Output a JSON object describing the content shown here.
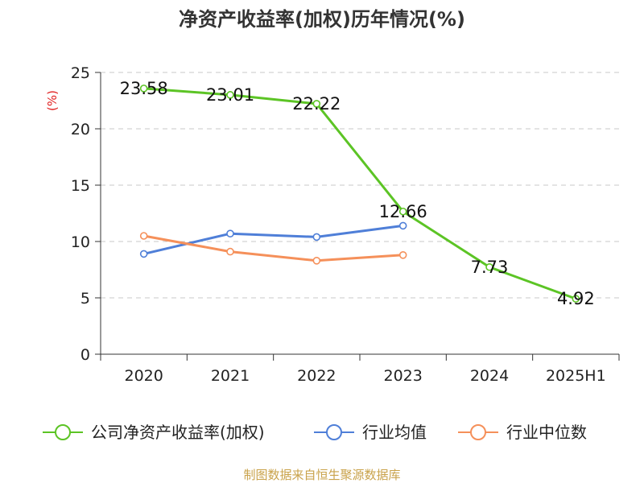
{
  "chart_data": {
    "type": "line",
    "title": "净资产收益率(加权)历年情况(%)",
    "ylabel": "(%)",
    "xlabel": "",
    "categories": [
      "2020",
      "2021",
      "2022",
      "2023",
      "2024",
      "2025H1"
    ],
    "ylim": [
      0,
      25
    ],
    "yticks": [
      0,
      5,
      10,
      15,
      20,
      25
    ],
    "grid": "horizontal-dashed",
    "legend_position": "bottom",
    "series": [
      {
        "name": "公司净资产收益率(加权)",
        "color": "#5cc425",
        "values": [
          23.58,
          23.01,
          22.22,
          12.66,
          7.73,
          4.92
        ],
        "data_labels": [
          "23.58",
          "23.01",
          "22.22",
          "12.66",
          "7.73",
          "4.92"
        ]
      },
      {
        "name": "行业均值",
        "color": "#4f7fd8",
        "values": [
          8.9,
          10.7,
          10.4,
          11.4,
          null,
          null
        ]
      },
      {
        "name": "行业中位数",
        "color": "#f5905a",
        "values": [
          10.5,
          9.1,
          8.3,
          8.8,
          null,
          null
        ]
      }
    ]
  },
  "source": "制图数据来自恒生聚源数据库"
}
